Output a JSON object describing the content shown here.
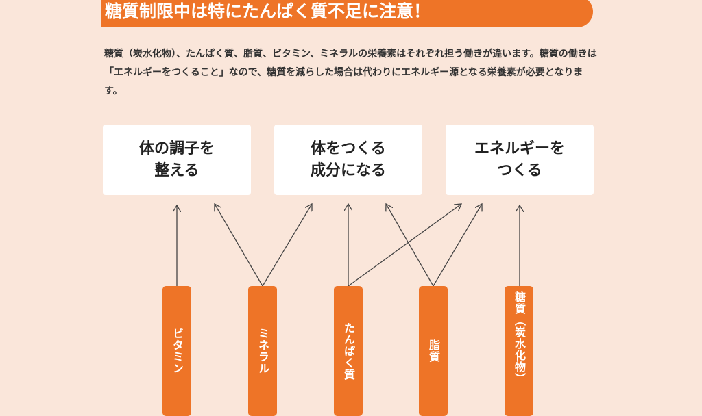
{
  "title": "糖質制限中は特にたんぱく質不足に注意！",
  "intro": "糖質（炭水化物）、たんぱく質、脂質、ビタミン、ミネラルの栄養素はそれぞれ担う働きが違います。糖質の働きは「エネルギーをつくること」なので、糖質を減らした場合は代わりにエネルギー源となる栄養素が必要となります。",
  "functions": [
    {
      "label": "体の調子を\n整える"
    },
    {
      "label": "体をつくる\n成分になる"
    },
    {
      "label": "エネルギーを\nつくる"
    }
  ],
  "nutrients": [
    {
      "label": "ビタミン",
      "targets": [
        0
      ]
    },
    {
      "label": "ミネラル",
      "targets": [
        0,
        1
      ]
    },
    {
      "label": "たんぱく質",
      "targets": [
        1,
        2
      ]
    },
    {
      "label": "脂質",
      "targets": [
        1,
        2
      ]
    },
    {
      "label": "糖質（炭水化物）",
      "targets": [
        2
      ]
    }
  ],
  "colors": {
    "accent": "#ee7427",
    "background": "#fae6da",
    "arrow": "#444444"
  }
}
